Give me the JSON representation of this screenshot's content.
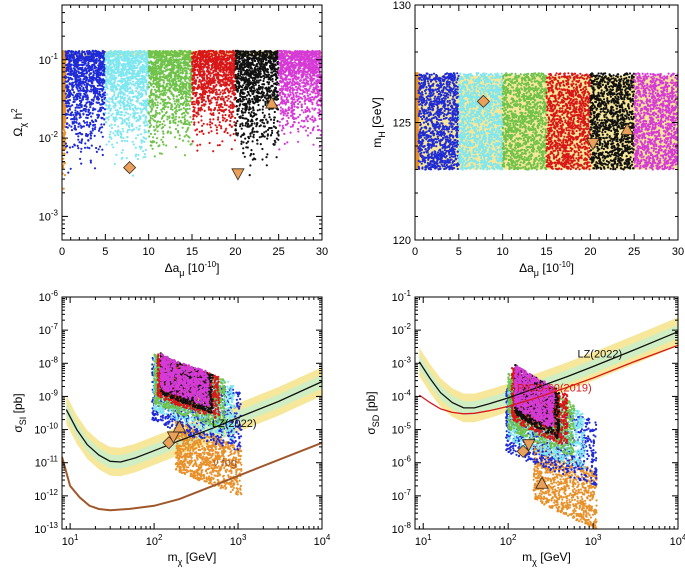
{
  "chart_data": [
    {
      "id": "relic",
      "type": "scatter",
      "xlabel": "Δa",
      "xlabel_sub": "μ",
      "xlabel_unit": "[10",
      "xlabel_unit_exp": "-10",
      "xlabel_unit_end": "]",
      "ylabel": "Ω",
      "ylabel_sub": "χ",
      "ylabel_tail": " h",
      "ylabel_sup": "2",
      "xlim": [
        0,
        30
      ],
      "ylim": [
        0.0005,
        0.5
      ],
      "yscale": "log",
      "xticks": [
        "0",
        "5",
        "10",
        "15",
        "20",
        "25",
        "30"
      ],
      "yticks": [
        {
          "base": "10",
          "exp": "-3",
          "v": 0.001
        },
        {
          "base": "10",
          "exp": "-2",
          "v": 0.01
        },
        {
          "base": "10",
          "exp": "-1",
          "v": 0.1
        }
      ],
      "band": {
        "color": "#f7e79a",
        "range": [
          0.11,
          0.13
        ]
      },
      "series": [
        {
          "color": "#e8912a",
          "xrange": [
            0,
            0.4
          ],
          "yrange": [
            0.002,
            0.13
          ]
        },
        {
          "color": "#1f2bd6",
          "xrange": [
            0.4,
            5
          ],
          "yrange": [
            0.003,
            0.13
          ]
        },
        {
          "color": "#7fe7f0",
          "xrange": [
            5,
            10
          ],
          "yrange": [
            0.003,
            0.13
          ]
        },
        {
          "color": "#6fc24a",
          "xrange": [
            10,
            15
          ],
          "yrange": [
            0.004,
            0.13
          ]
        },
        {
          "color": "#d81818",
          "xrange": [
            15,
            20
          ],
          "yrange": [
            0.005,
            0.13
          ]
        },
        {
          "color": "#111111",
          "xrange": [
            20,
            25
          ],
          "yrange": [
            0.003,
            0.13
          ]
        },
        {
          "color": "#d63bd6",
          "xrange": [
            25,
            30
          ],
          "yrange": [
            0.006,
            0.13
          ]
        }
      ],
      "markers": [
        {
          "shape": "diamond",
          "x": 7.8,
          "y": 0.0042
        },
        {
          "shape": "triangle-down",
          "x": 20.3,
          "y": 0.0035
        },
        {
          "shape": "triangle-up",
          "x": 24.2,
          "y": 0.028
        }
      ]
    },
    {
      "id": "higgs",
      "type": "scatter",
      "xlabel": "Δa",
      "xlabel_sub": "μ",
      "xlabel_unit": "[10",
      "xlabel_unit_exp": "-10",
      "xlabel_unit_end": "]",
      "ylabel": "m",
      "ylabel_sub": "H",
      "ylabel_tail": " [GeV]",
      "xlim": [
        0,
        30
      ],
      "ylim": [
        120,
        130
      ],
      "yscale": "linear",
      "xticks": [
        "0",
        "5",
        "10",
        "15",
        "20",
        "25",
        "30"
      ],
      "yticks": [
        {
          "base": "120",
          "v": 120
        },
        {
          "base": "125",
          "v": 125
        },
        {
          "base": "130",
          "v": 130
        }
      ],
      "band": {
        "color": "#f7e79a",
        "range": [
          123,
          127
        ]
      },
      "series": [
        {
          "color": "#e8912a",
          "xrange": [
            0,
            0.4
          ],
          "yrange": [
            123,
            127.1
          ]
        },
        {
          "color": "#1f2bd6",
          "xrange": [
            0.4,
            5
          ],
          "yrange": [
            123,
            127.1
          ]
        },
        {
          "color": "#7fe7f0",
          "xrange": [
            5,
            10
          ],
          "yrange": [
            123,
            127.1
          ]
        },
        {
          "color": "#6fc24a",
          "xrange": [
            10,
            15
          ],
          "yrange": [
            123,
            127.1
          ]
        },
        {
          "color": "#d81818",
          "xrange": [
            15,
            20
          ],
          "yrange": [
            123,
            127.1
          ]
        },
        {
          "color": "#111111",
          "xrange": [
            20,
            25
          ],
          "yrange": [
            123,
            127.1
          ]
        },
        {
          "color": "#d63bd6",
          "xrange": [
            25,
            30
          ],
          "yrange": [
            123,
            127.1
          ]
        }
      ],
      "markers": [
        {
          "shape": "diamond",
          "x": 7.8,
          "y": 125.9
        },
        {
          "shape": "triangle-down",
          "x": 20.3,
          "y": 124.1
        },
        {
          "shape": "triangle-up",
          "x": 24.2,
          "y": 124.7
        }
      ]
    },
    {
      "id": "si",
      "type": "scatter",
      "xlabel": "m",
      "xlabel_sub": "χ",
      "xlabel_unit": " [GeV]",
      "ylabel": "σ",
      "ylabel_sub": "SI",
      "ylabel_tail": " [pb]",
      "xscale": "log",
      "yscale": "log",
      "xlim": [
        8,
        10000
      ],
      "ylim": [
        1e-13,
        1e-06
      ],
      "xticks": [
        {
          "base": "10",
          "exp": "1",
          "v": 10
        },
        {
          "base": "10",
          "exp": "2",
          "v": 100
        },
        {
          "base": "10",
          "exp": "3",
          "v": 1000
        },
        {
          "base": "10",
          "exp": "4",
          "v": 10000
        }
      ],
      "yticks": [
        {
          "base": "10",
          "exp": "-13",
          "v": 1e-13
        },
        {
          "base": "10",
          "exp": "-12",
          "v": 1e-12
        },
        {
          "base": "10",
          "exp": "-11",
          "v": 1e-11
        },
        {
          "base": "10",
          "exp": "-10",
          "v": 1e-10
        },
        {
          "base": "10",
          "exp": "-9",
          "v": 1e-09
        },
        {
          "base": "10",
          "exp": "-8",
          "v": 1e-08
        },
        {
          "base": "10",
          "exp": "-7",
          "v": 1e-07
        },
        {
          "base": "10",
          "exp": "-6",
          "v": 1e-06
        }
      ],
      "lines": [
        {
          "label": "LZ(2022)",
          "color": "#111111",
          "x": [
            9,
            12,
            16,
            22,
            30,
            40,
            60,
            100,
            200,
            500,
            1000,
            3000,
            10000
          ],
          "y": [
            4e-10,
            1e-10,
            3.5e-11,
            1.7e-11,
            1.1e-11,
            1.05e-11,
            1.4e-11,
            2.3e-11,
            4.6e-11,
            1.1e-10,
            2.3e-10,
            7e-10,
            2.8e-09
          ],
          "band_color": "#f7e79a",
          "band_factor": 2.7,
          "inner_color": "#cfeec4",
          "inner_factor": 1.6
        },
        {
          "label": "ν fog",
          "color": "#a0582a",
          "x": [
            8,
            10,
            13,
            17,
            22,
            30,
            50,
            100,
            200,
            500,
            1000,
            3000,
            10000
          ],
          "y": [
            1.5e-11,
            2e-12,
            9e-13,
            5e-13,
            4e-13,
            3.7e-13,
            4e-13,
            5e-13,
            8e-13,
            2e-12,
            4e-12,
            1.2e-11,
            4e-11
          ]
        }
      ],
      "line_labels": [
        {
          "text": "LZ(2022)",
          "color": "#111111",
          "x": 900,
          "y": 1.2e-10
        },
        {
          "text": "ν fog",
          "color": "#a0582a",
          "x": 700,
          "y": 8e-12
        }
      ],
      "series": [
        {
          "color": "#e8912a",
          "mrange": [
            180,
            1100
          ],
          "yrange": [
            1e-12,
            2e-10
          ]
        },
        {
          "color": "#1f2bd6",
          "mrange": [
            95,
            1100
          ],
          "yrange": [
            2e-11,
            1.5e-08
          ]
        },
        {
          "color": "#7fe7f0",
          "mrange": [
            100,
            900
          ],
          "yrange": [
            5e-11,
            2e-08
          ]
        },
        {
          "color": "#6fc24a",
          "mrange": [
            100,
            700
          ],
          "yrange": [
            1e-10,
            2e-08
          ]
        },
        {
          "color": "#d81818",
          "mrange": [
            110,
            600
          ],
          "yrange": [
            2e-10,
            2e-08
          ]
        },
        {
          "color": "#111111",
          "mrange": [
            120,
            500
          ],
          "yrange": [
            3e-10,
            2e-08
          ]
        },
        {
          "color": "#d63bd6",
          "mrange": [
            120,
            450
          ],
          "yrange": [
            5e-10,
            2e-08
          ]
        }
      ],
      "markers": [
        {
          "shape": "diamond",
          "x": 150,
          "y": 4e-11
        },
        {
          "shape": "triangle-down",
          "x": 170,
          "y": 6e-11
        },
        {
          "shape": "triangle-up",
          "x": 200,
          "y": 1.2e-10
        }
      ]
    },
    {
      "id": "sd",
      "type": "scatter",
      "xlabel": "m",
      "xlabel_sub": "χ",
      "xlabel_unit": " [GeV]",
      "ylabel": "σ",
      "ylabel_sub": "SD",
      "ylabel_tail": " [pb]",
      "xscale": "log",
      "yscale": "log",
      "xlim": [
        8,
        10000
      ],
      "ylim": [
        1e-08,
        0.1
      ],
      "xticks": [
        {
          "base": "10",
          "exp": "1",
          "v": 10
        },
        {
          "base": "10",
          "exp": "2",
          "v": 100
        },
        {
          "base": "10",
          "exp": "3",
          "v": 1000
        },
        {
          "base": "10",
          "exp": "4",
          "v": 10000
        }
      ],
      "yticks": [
        {
          "base": "10",
          "exp": "-8",
          "v": 1e-08
        },
        {
          "base": "10",
          "exp": "-7",
          "v": 1e-07
        },
        {
          "base": "10",
          "exp": "-6",
          "v": 1e-06
        },
        {
          "base": "10",
          "exp": "-5",
          "v": 1e-05
        },
        {
          "base": "10",
          "exp": "-4",
          "v": 0.0001
        },
        {
          "base": "10",
          "exp": "-3",
          "v": 0.001
        },
        {
          "base": "10",
          "exp": "-2",
          "v": 0.01
        },
        {
          "base": "10",
          "exp": "-1",
          "v": 0.1
        }
      ],
      "lines": [
        {
          "label": "LZ(2022)",
          "color": "#111111",
          "x": [
            9,
            12,
            16,
            22,
            30,
            40,
            60,
            100,
            200,
            500,
            1000,
            3000,
            10000
          ],
          "y": [
            0.0011,
            0.00035,
            0.00013,
            6.5e-05,
            4.5e-05,
            4.5e-05,
            6e-05,
            9e-05,
            0.00017,
            0.0004,
            0.0008,
            0.0025,
            0.009
          ],
          "band_color": "#f7e79a",
          "band_factor": 2.7,
          "inner_color": "#cfeec4",
          "inner_factor": 1.6
        },
        {
          "label": "PICO-60(2019)",
          "color": "#d81818",
          "x": [
            9,
            12,
            16,
            22,
            30,
            40,
            60,
            100,
            200,
            500,
            1000,
            3000,
            10000
          ],
          "y": [
            0.00011,
            6.5e-05,
            4.2e-05,
            3.3e-05,
            3e-05,
            3.1e-05,
            3.7e-05,
            5e-05,
            8.5e-05,
            0.00019,
            0.00036,
            0.0011,
            0.0035
          ]
        }
      ],
      "line_labels": [
        {
          "text": "LZ(2022)",
          "color": "#111111",
          "x": 1200,
          "y": 0.0015
        },
        {
          "text": "PICO-60(2019)",
          "color": "#d81818",
          "x": 350,
          "y": 0.00014
        }
      ],
      "series": [
        {
          "color": "#e8912a",
          "mrange": [
            200,
            1100
          ],
          "yrange": [
            1e-08,
            5e-06
          ]
        },
        {
          "color": "#1f2bd6",
          "mrange": [
            95,
            1100
          ],
          "yrange": [
            2e-07,
            0.0002
          ]
        },
        {
          "color": "#7fe7f0",
          "mrange": [
            100,
            800
          ],
          "yrange": [
            6e-07,
            0.0003
          ]
        },
        {
          "color": "#6fc24a",
          "mrange": [
            100,
            600
          ],
          "yrange": [
            1.5e-06,
            0.0005
          ]
        },
        {
          "color": "#d81818",
          "mrange": [
            110,
            500
          ],
          "yrange": [
            3e-06,
            0.0008
          ]
        },
        {
          "color": "#111111",
          "mrange": [
            120,
            400
          ],
          "yrange": [
            5e-06,
            0.001
          ]
        },
        {
          "color": "#d63bd6",
          "mrange": [
            120,
            350
          ],
          "yrange": [
            1e-05,
            0.001
          ]
        }
      ],
      "markers": [
        {
          "shape": "diamond",
          "x": 150,
          "y": 2.2e-06
        },
        {
          "shape": "triangle-down",
          "x": 175,
          "y": 3.5e-06
        },
        {
          "shape": "triangle-up",
          "x": 250,
          "y": 2.4e-07
        }
      ]
    }
  ]
}
